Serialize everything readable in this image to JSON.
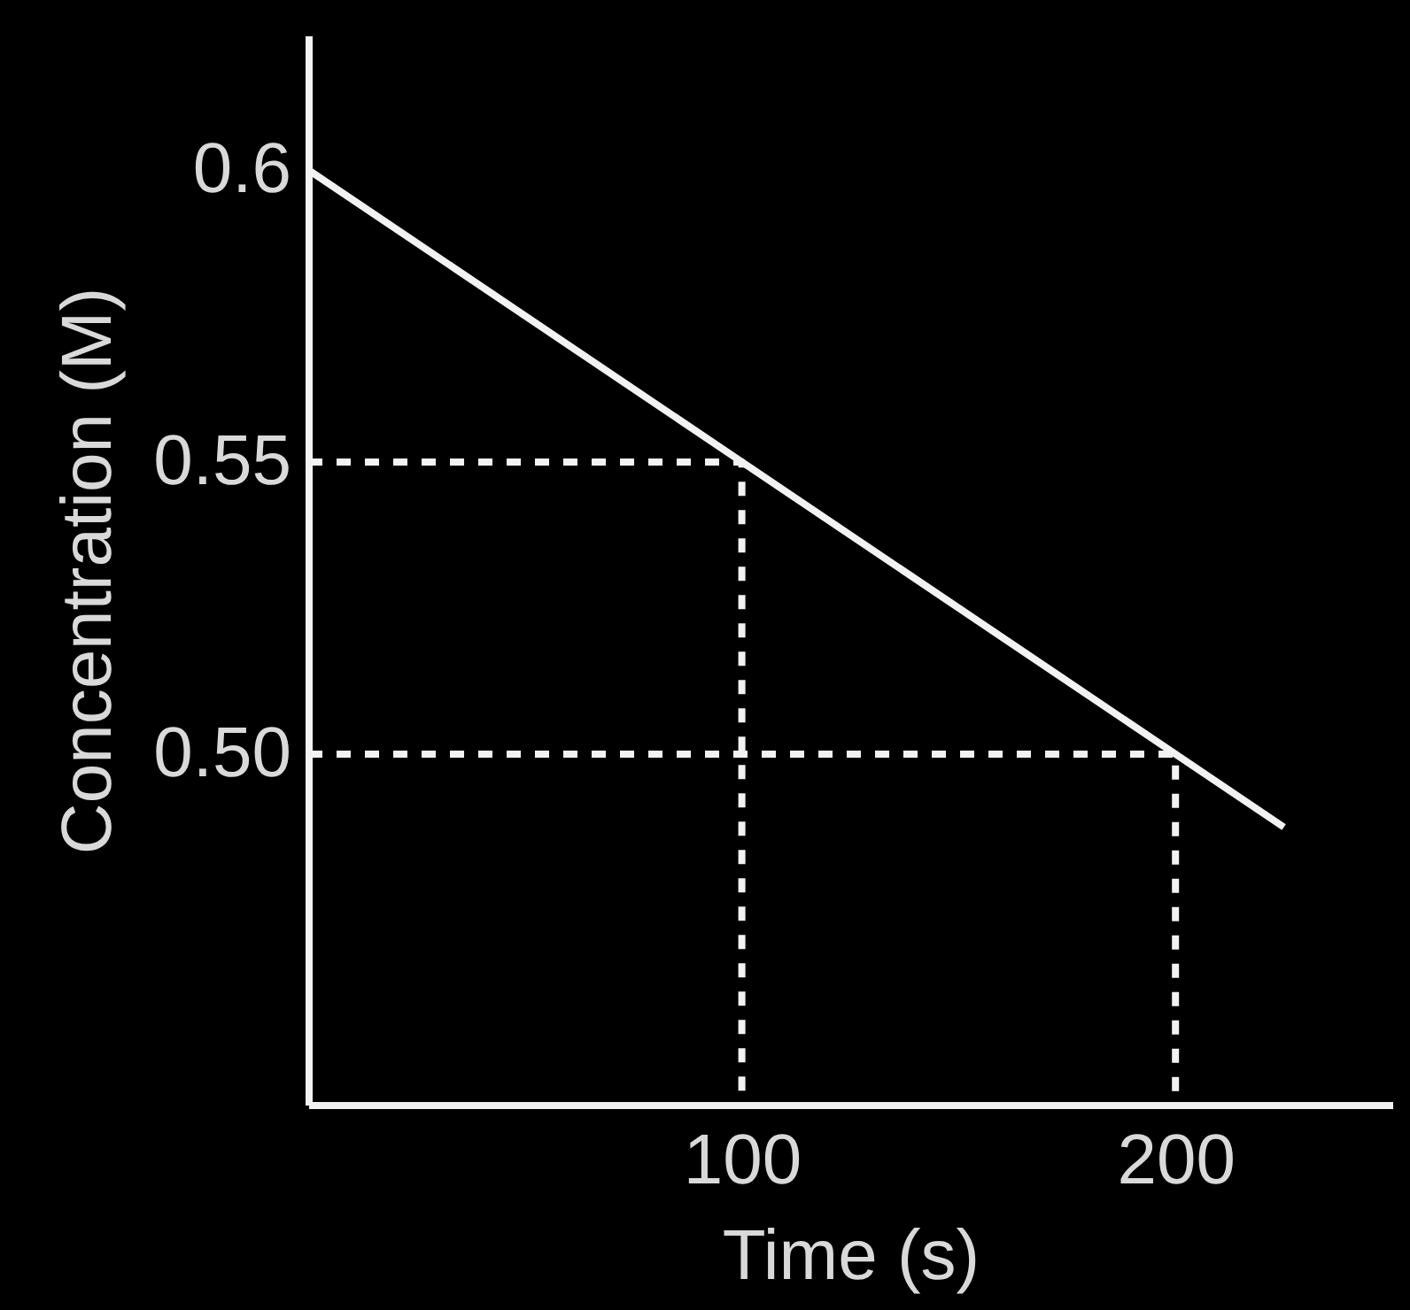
{
  "chart_data": {
    "type": "line",
    "xlabel": "Time (s)",
    "ylabel": "Concentration (M)",
    "xlim": [
      0,
      250
    ],
    "ylim": [
      0.44,
      0.623
    ],
    "xticks": [
      100,
      200
    ],
    "yticks": [
      {
        "value": 0.5,
        "label": "0.50"
      },
      0.55,
      0.6
    ],
    "grid": false,
    "series": [
      {
        "color": "#f2f2f2",
        "x": [
          0,
          225
        ],
        "values": [
          0.6,
          0.4875
        ],
        "line_style": "solid"
      },
      {
        "color": "#f2f2f2",
        "x": [
          0,
          100,
          100
        ],
        "values": [
          0.55,
          0.55,
          0.44
        ],
        "line_style": "dashed"
      },
      {
        "color": "#f2f2f2",
        "x": [
          0,
          200,
          200
        ],
        "values": [
          0.5,
          0.5,
          0.44
        ],
        "line_style": "dashed"
      }
    ]
  }
}
